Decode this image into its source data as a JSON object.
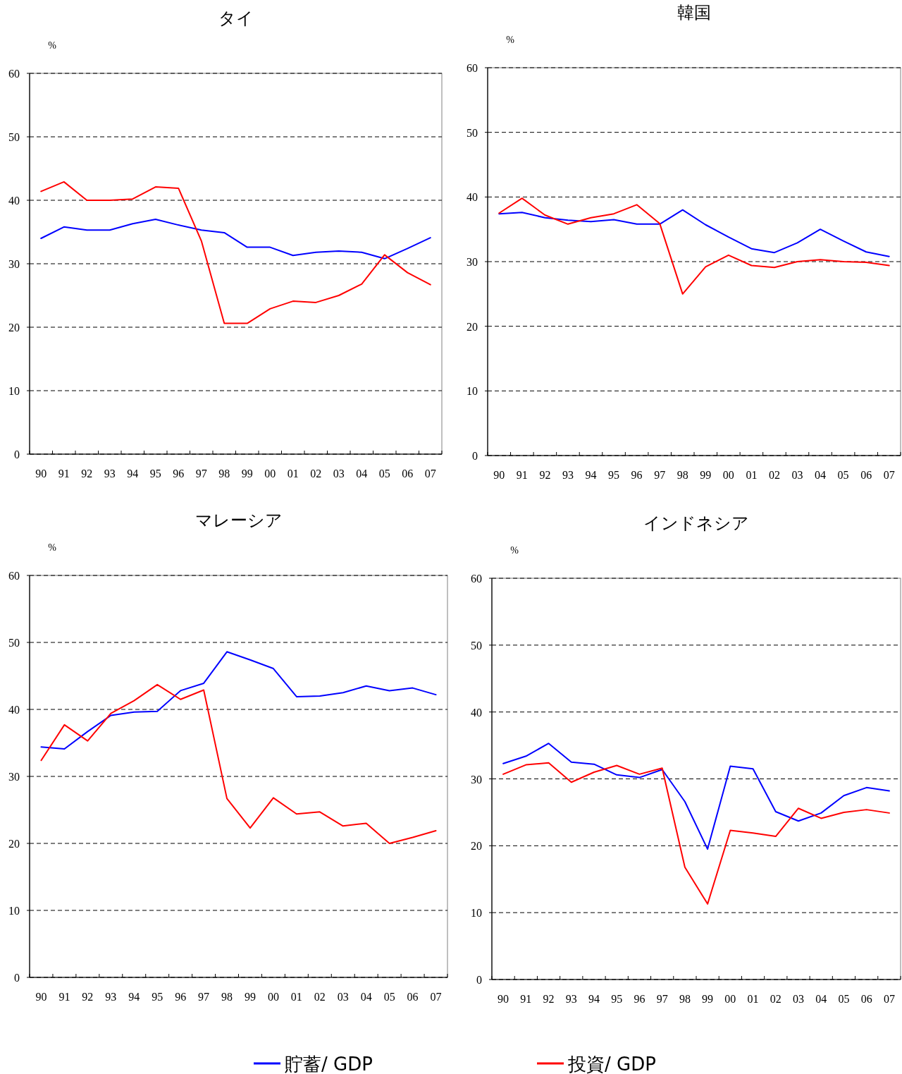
{
  "chart_data": [
    {
      "type": "line",
      "title": "タイ",
      "ylabel": "%",
      "categories": [
        "90",
        "91",
        "92",
        "93",
        "94",
        "95",
        "96",
        "97",
        "98",
        "99",
        "00",
        "01",
        "02",
        "03",
        "04",
        "05",
        "06",
        "07"
      ],
      "ylim": [
        0,
        60
      ],
      "yticks": [
        0,
        10,
        20,
        30,
        40,
        50,
        60
      ],
      "grid": "y",
      "legend": "bottom",
      "marker": "none",
      "line_style": "solid",
      "series": [
        {
          "name": "貯蓄/ GDP",
          "color": "#0000ff",
          "values": [
            34.0,
            35.8,
            35.3,
            35.3,
            36.3,
            37.0,
            36.1,
            35.3,
            34.9,
            32.6,
            32.6,
            31.3,
            31.8,
            32.0,
            31.8,
            30.8,
            32.4,
            34.1
          ]
        },
        {
          "name": "投資/ GDP",
          "color": "#ff0000",
          "values": [
            41.4,
            42.9,
            40.0,
            40.0,
            40.2,
            42.1,
            41.9,
            33.6,
            20.6,
            20.6,
            22.9,
            24.1,
            23.9,
            25.0,
            26.8,
            31.4,
            28.6,
            26.7
          ]
        }
      ]
    },
    {
      "type": "line",
      "title": "韓国",
      "ylabel": "%",
      "categories": [
        "90",
        "91",
        "92",
        "93",
        "94",
        "95",
        "96",
        "97",
        "98",
        "99",
        "00",
        "01",
        "02",
        "03",
        "04",
        "05",
        "06",
        "07"
      ],
      "ylim": [
        0,
        60
      ],
      "yticks": [
        0,
        10,
        20,
        30,
        40,
        50,
        60
      ],
      "grid": "y",
      "marker": "none",
      "line_style": "solid",
      "series": [
        {
          "color": "#0000ff",
          "values": [
            37.4,
            37.6,
            36.8,
            36.4,
            36.2,
            36.5,
            35.8,
            35.8,
            38.0,
            35.7,
            33.8,
            32.0,
            31.4,
            32.9,
            35.0,
            33.2,
            31.5,
            30.8
          ]
        },
        {
          "color": "#ff0000",
          "values": [
            37.5,
            39.8,
            37.2,
            35.8,
            36.8,
            37.4,
            38.8,
            35.9,
            25.0,
            29.2,
            31.0,
            29.4,
            29.1,
            30.0,
            30.3,
            30.0,
            29.9,
            29.4
          ]
        }
      ]
    },
    {
      "type": "line",
      "title": "マレーシア",
      "ylabel": "%",
      "categories": [
        "90",
        "91",
        "92",
        "93",
        "94",
        "95",
        "96",
        "97",
        "98",
        "99",
        "00",
        "01",
        "02",
        "03",
        "04",
        "05",
        "06",
        "07"
      ],
      "ylim": [
        0,
        60
      ],
      "yticks": [
        0,
        10,
        20,
        30,
        40,
        50,
        60
      ],
      "grid": "y",
      "marker": "none",
      "line_style": "solid",
      "series": [
        {
          "color": "#0000ff",
          "values": [
            34.4,
            34.1,
            36.7,
            39.1,
            39.6,
            39.7,
            42.8,
            43.9,
            48.6,
            47.4,
            46.1,
            41.9,
            42.0,
            42.5,
            43.5,
            42.8,
            43.2,
            42.2
          ]
        },
        {
          "color": "#ff0000",
          "values": [
            32.4,
            37.7,
            35.3,
            39.4,
            41.3,
            43.7,
            41.5,
            42.9,
            26.7,
            22.3,
            26.8,
            24.4,
            24.7,
            22.6,
            23.0,
            20.0,
            20.9,
            21.9
          ]
        }
      ]
    },
    {
      "type": "line",
      "title": "インドネシア",
      "ylabel": "%",
      "categories": [
        "90",
        "91",
        "92",
        "93",
        "94",
        "95",
        "96",
        "97",
        "98",
        "99",
        "00",
        "01",
        "02",
        "03",
        "04",
        "05",
        "06",
        "07"
      ],
      "ylim": [
        0,
        60
      ],
      "yticks": [
        0,
        10,
        20,
        30,
        40,
        50,
        60
      ],
      "grid": "y",
      "marker": "none",
      "line_style": "solid",
      "series": [
        {
          "color": "#0000ff",
          "values": [
            32.3,
            33.4,
            35.3,
            32.5,
            32.2,
            30.6,
            30.2,
            31.4,
            26.6,
            19.5,
            31.9,
            31.5,
            25.1,
            23.7,
            24.9,
            27.5,
            28.7,
            28.2
          ]
        },
        {
          "color": "#ff0000",
          "values": [
            30.7,
            32.1,
            32.4,
            29.5,
            31.0,
            32.0,
            30.7,
            31.6,
            16.8,
            11.3,
            22.3,
            21.9,
            21.4,
            25.6,
            24.1,
            25.0,
            25.4,
            24.9
          ]
        }
      ]
    }
  ]
}
